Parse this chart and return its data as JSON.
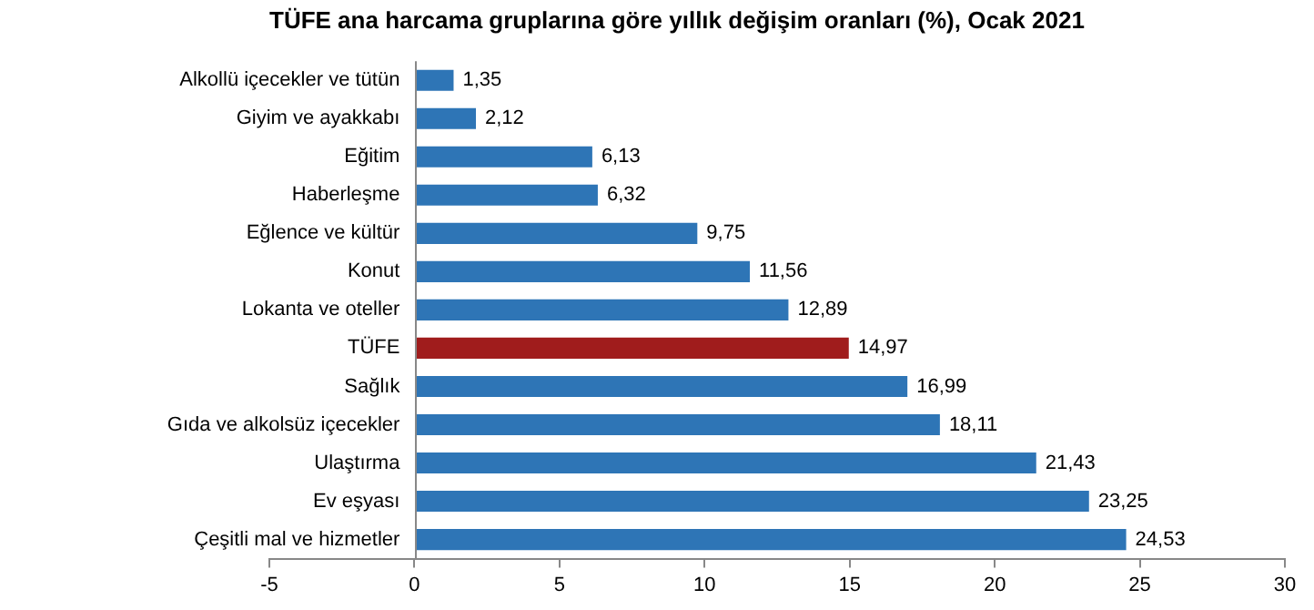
{
  "chart_data": {
    "type": "bar",
    "orientation": "horizontal",
    "title": "TÜFE ana harcama gruplarına göre yıllık değişim oranları (%), Ocak 2021",
    "categories": [
      "Alkollü içecekler ve tütün",
      "Giyim ve ayakkabı",
      "Eğitim",
      "Haberleşme",
      "Eğlence ve kültür",
      "Konut",
      "Lokanta ve oteller",
      "TÜFE",
      "Sağlık",
      "Gıda ve alkolsüz içecekler",
      "Ulaştırma",
      "Ev eşyası",
      "Çeşitli mal ve hizmetler"
    ],
    "values": [
      1.35,
      2.12,
      6.13,
      6.32,
      9.75,
      11.56,
      12.89,
      14.97,
      16.99,
      18.11,
      21.43,
      23.25,
      24.53
    ],
    "value_labels": [
      "1,35",
      "2,12",
      "6,13",
      "6,32",
      "9,75",
      "11,56",
      "12,89",
      "14,97",
      "16,99",
      "18,11",
      "21,43",
      "23,25",
      "24,53"
    ],
    "colors": [
      "#2e75b6",
      "#2e75b6",
      "#2e75b6",
      "#2e75b6",
      "#2e75b6",
      "#2e75b6",
      "#2e75b6",
      "#a01c1c",
      "#2e75b6",
      "#2e75b6",
      "#2e75b6",
      "#2e75b6",
      "#2e75b6"
    ],
    "xlim": [
      -5,
      30
    ],
    "xticks": [
      -5,
      0,
      5,
      10,
      15,
      20,
      25,
      30
    ],
    "grid": false,
    "legend": false
  }
}
